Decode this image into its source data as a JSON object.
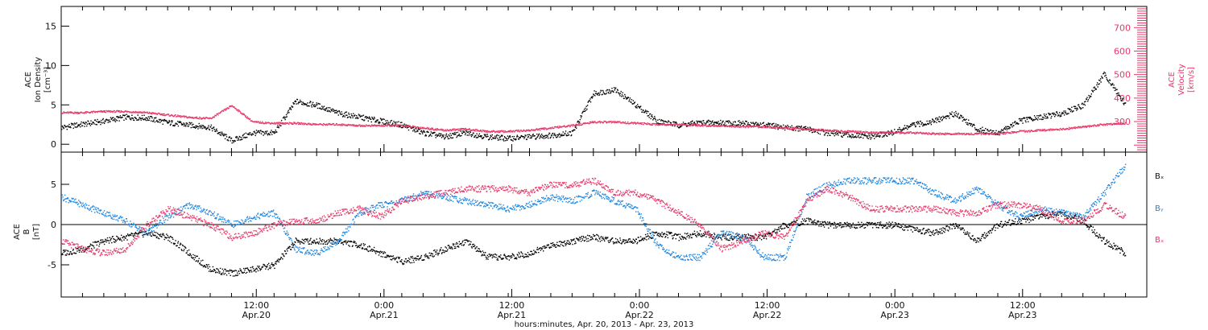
{
  "chart_data": [
    {
      "type": "scatter",
      "panel": "top",
      "ylabel_lines": [
        "ACE",
        "Ion Density",
        "[cm⁻³]"
      ],
      "y2label_lines": [
        "ACE",
        "Velocity",
        "[km/s]"
      ],
      "ylim": [
        -1,
        17.5
      ],
      "y2lim": [
        170,
        790
      ],
      "yticks": [
        0,
        5,
        10,
        15
      ],
      "y2ticks": [
        300,
        400,
        500,
        600,
        700
      ],
      "colors": {
        "density": "#000000",
        "velocity": "#e8386a"
      },
      "series": [
        {
          "name": "",
          "axis": "left",
          "x": [
            0,
            2,
            4,
            6,
            8,
            10,
            12,
            14,
            16,
            18,
            20,
            22,
            24,
            26,
            28,
            30,
            32,
            34,
            36,
            38,
            40,
            42,
            44,
            46,
            48,
            50,
            52,
            54,
            56,
            58,
            60,
            62,
            64,
            66,
            68,
            70,
            72,
            74,
            76,
            78,
            80,
            82,
            84,
            86,
            88,
            90,
            92,
            94,
            96,
            98,
            100
          ],
          "values": [
            2.2,
            2.6,
            3.0,
            3.5,
            3.4,
            2.8,
            2.5,
            2.2,
            0.5,
            1.5,
            1.5,
            5.5,
            5.0,
            4.0,
            3.5,
            3.0,
            2.5,
            1.5,
            1.0,
            1.5,
            1.0,
            0.8,
            1.0,
            1.2,
            1.5,
            6.5,
            7.0,
            5.0,
            3.0,
            2.5,
            2.8,
            2.8,
            2.7,
            2.5,
            2.2,
            2.0,
            1.5,
            1.2,
            1.0,
            1.5,
            2.5,
            3.0,
            4.0,
            2.0,
            1.5,
            3.0,
            3.5,
            4.0,
            5.0,
            9.0,
            5.0
          ]
        },
        {
          "name": "",
          "axis": "right",
          "x": [
            0,
            2,
            4,
            6,
            8,
            10,
            12,
            14,
            16,
            18,
            20,
            22,
            24,
            26,
            28,
            30,
            32,
            34,
            36,
            38,
            40,
            42,
            44,
            46,
            48,
            50,
            52,
            54,
            56,
            58,
            60,
            62,
            64,
            66,
            68,
            70,
            72,
            74,
            76,
            78,
            80,
            82,
            84,
            86,
            88,
            90,
            92,
            94,
            96,
            98,
            100
          ],
          "values": [
            340,
            340,
            345,
            345,
            340,
            330,
            320,
            315,
            370,
            300,
            295,
            295,
            290,
            290,
            285,
            285,
            285,
            275,
            265,
            270,
            260,
            260,
            265,
            275,
            285,
            300,
            300,
            295,
            290,
            290,
            285,
            285,
            280,
            280,
            275,
            270,
            265,
            260,
            255,
            255,
            255,
            250,
            250,
            250,
            250,
            260,
            265,
            270,
            280,
            290,
            295
          ]
        }
      ]
    },
    {
      "type": "scatter",
      "panel": "bottom",
      "ylabel_lines": [
        "ACE",
        "B",
        "[nT]"
      ],
      "ylim": [
        -9,
        9
      ],
      "yticks": [
        -5,
        0,
        5
      ],
      "legend": [
        "Bₓ",
        "Bᵧ",
        "Bₓ"
      ],
      "legend_placement": "right",
      "colors": {
        "Bx": "#000000",
        "By": "#1f86e0",
        "Bz": "#e8386a"
      },
      "series": [
        {
          "name": "Bₓ",
          "x": [
            0,
            2,
            4,
            6,
            8,
            10,
            12,
            14,
            16,
            18,
            20,
            22,
            24,
            26,
            28,
            30,
            32,
            34,
            36,
            38,
            40,
            42,
            44,
            46,
            48,
            50,
            52,
            54,
            56,
            58,
            60,
            62,
            64,
            66,
            68,
            70,
            72,
            74,
            76,
            78,
            80,
            82,
            84,
            86,
            88,
            90,
            92,
            94,
            96,
            98,
            100
          ],
          "values": [
            -3.5,
            -3.0,
            -2.0,
            -1.5,
            -1.0,
            -1.5,
            -3.5,
            -5.5,
            -6.0,
            -5.5,
            -5.0,
            -2.0,
            -2.0,
            -2.0,
            -2.5,
            -3.5,
            -4.5,
            -4.0,
            -3.0,
            -2.0,
            -4.0,
            -4.0,
            -3.5,
            -2.5,
            -2.0,
            -1.5,
            -2.0,
            -2.0,
            -1.0,
            -1.5,
            -1.0,
            -1.5,
            -1.5,
            -1.5,
            0.0,
            0.5,
            0.0,
            0.0,
            0.0,
            0.0,
            -0.5,
            -1.0,
            0.0,
            -2.0,
            0.0,
            0.5,
            1.0,
            1.5,
            0.5,
            -2.0,
            -3.5
          ]
        },
        {
          "name": "Bᵧ",
          "x": [
            0,
            2,
            4,
            6,
            8,
            10,
            12,
            14,
            16,
            18,
            20,
            22,
            24,
            26,
            28,
            30,
            32,
            34,
            36,
            38,
            40,
            42,
            44,
            46,
            48,
            50,
            52,
            54,
            56,
            58,
            60,
            62,
            64,
            66,
            68,
            70,
            72,
            74,
            76,
            78,
            80,
            82,
            84,
            86,
            88,
            90,
            92,
            94,
            96,
            98,
            100
          ],
          "values": [
            3.5,
            2.5,
            1.5,
            0.5,
            -1.0,
            1.0,
            2.5,
            1.5,
            0.0,
            1.0,
            1.5,
            -3.0,
            -3.5,
            -2.0,
            1.5,
            2.5,
            3.0,
            4.0,
            3.5,
            3.0,
            2.5,
            2.0,
            2.5,
            3.5,
            3.0,
            4.0,
            3.0,
            2.0,
            -2.5,
            -4.0,
            -4.0,
            -1.0,
            -1.5,
            -4.0,
            -4.0,
            3.5,
            5.0,
            5.5,
            5.5,
            5.5,
            5.5,
            4.0,
            3.0,
            4.5,
            2.5,
            1.0,
            2.0,
            1.5,
            1.0,
            4.0,
            7.5
          ]
        },
        {
          "name": "Bₓ",
          "x": [
            0,
            2,
            4,
            6,
            8,
            10,
            12,
            14,
            16,
            18,
            20,
            22,
            24,
            26,
            28,
            30,
            32,
            34,
            36,
            38,
            40,
            42,
            44,
            46,
            48,
            50,
            52,
            54,
            56,
            58,
            60,
            62,
            64,
            66,
            68,
            70,
            72,
            74,
            76,
            78,
            80,
            82,
            84,
            86,
            88,
            90,
            92,
            94,
            96,
            98,
            100
          ],
          "values": [
            -2.0,
            -3.0,
            -3.5,
            -3.0,
            0.0,
            2.0,
            1.0,
            0.0,
            -1.5,
            -1.0,
            0.0,
            0.5,
            0.5,
            1.5,
            2.0,
            1.0,
            3.0,
            3.5,
            4.0,
            4.5,
            4.5,
            4.5,
            4.0,
            5.0,
            5.0,
            5.5,
            4.0,
            4.0,
            3.0,
            1.5,
            0.0,
            -3.0,
            -2.0,
            -1.0,
            -1.5,
            3.0,
            4.5,
            3.5,
            2.0,
            2.0,
            2.0,
            2.0,
            1.5,
            1.5,
            2.5,
            2.5,
            2.0,
            0.5,
            0.5,
            2.5,
            1.0
          ]
        }
      ]
    }
  ],
  "x_axis": {
    "unit": "hours since 2013-04-19 17:40",
    "ticks": [
      {
        "time": "12:00",
        "date": "Apr.20"
      },
      {
        "time": "0:00",
        "date": "Apr.21"
      },
      {
        "time": "12:00",
        "date": "Apr.21"
      },
      {
        "time": "0:00",
        "date": "Apr.22"
      },
      {
        "time": "12:00",
        "date": "Apr.22"
      },
      {
        "time": "0:00",
        "date": "Apr.23"
      },
      {
        "time": "12:00",
        "date": "Apr.23"
      }
    ],
    "title": "hours:minutes, Apr. 20, 2013 - Apr. 23, 2013"
  }
}
